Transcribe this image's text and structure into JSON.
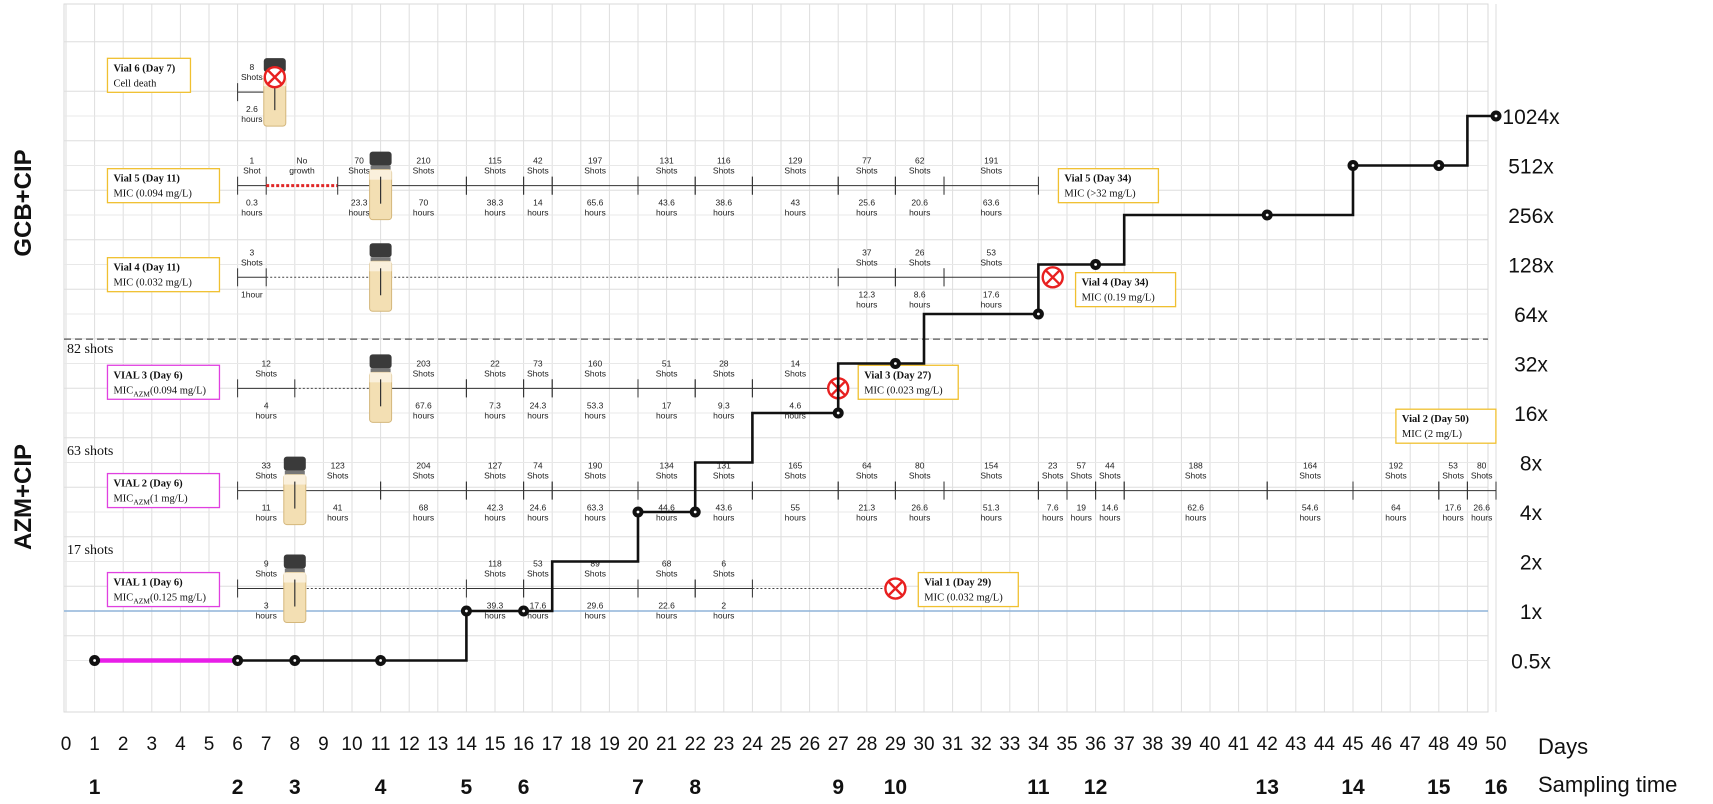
{
  "chart_data": {
    "type": "line",
    "x_axis": {
      "label": "Days",
      "min": 0,
      "max": 50,
      "ticks": [
        0,
        1,
        2,
        3,
        4,
        5,
        6,
        7,
        8,
        9,
        10,
        11,
        12,
        13,
        14,
        15,
        16,
        17,
        18,
        19,
        20,
        21,
        22,
        23,
        24,
        25,
        26,
        27,
        28,
        29,
        30,
        31,
        32,
        33,
        34,
        35,
        36,
        37,
        38,
        39,
        40,
        41,
        42,
        43,
        44,
        45,
        46,
        47,
        48,
        49,
        50
      ]
    },
    "y_axis": {
      "scale": "log2",
      "tick_labels": [
        "0.5x",
        "1x",
        "2x",
        "4x",
        "8x",
        "16x",
        "32x",
        "64x",
        "128x",
        "256x",
        "512x",
        "1024x"
      ],
      "tick_values": [
        0.5,
        1,
        2,
        4,
        8,
        16,
        32,
        64,
        128,
        256,
        512,
        1024
      ]
    },
    "grid": true,
    "group_labels": [
      "GCB+CIP",
      "AZM+CIP"
    ],
    "sampling_time": {
      "label": "Sampling time",
      "points": [
        {
          "day": 1,
          "label": "1"
        },
        {
          "day": 6,
          "label": "2"
        },
        {
          "day": 8,
          "label": "3"
        },
        {
          "day": 11,
          "label": "4"
        },
        {
          "day": 14,
          "label": "5"
        },
        {
          "day": 16,
          "label": "6"
        },
        {
          "day": 20,
          "label": "7"
        },
        {
          "day": 22,
          "label": "8"
        },
        {
          "day": 27,
          "label": "9"
        },
        {
          "day": 29,
          "label": "10"
        },
        {
          "day": 34,
          "label": "11"
        },
        {
          "day": 36,
          "label": "12"
        },
        {
          "day": 42,
          "label": "13"
        },
        {
          "day": 45,
          "label": "14"
        },
        {
          "day": 48,
          "label": "15"
        },
        {
          "day": 50,
          "label": "16"
        }
      ]
    },
    "mic_fold_series": {
      "points": [
        {
          "day": 1,
          "fold": 0.5
        },
        {
          "day": 6,
          "fold": 0.5
        },
        {
          "day": 8,
          "fold": 0.5
        },
        {
          "day": 11,
          "fold": 0.5
        },
        {
          "day": 14,
          "fold": 1
        },
        {
          "day": 16,
          "fold": 1
        },
        {
          "day": 20,
          "fold": 4
        },
        {
          "day": 22,
          "fold": 4
        },
        {
          "day": 27,
          "fold": 16
        },
        {
          "day": 29,
          "fold": 32
        },
        {
          "day": 34,
          "fold": 64
        },
        {
          "day": 36,
          "fold": 128
        },
        {
          "day": 42,
          "fold": 256
        },
        {
          "day": 45,
          "fold": 512
        },
        {
          "day": 48,
          "fold": 512
        },
        {
          "day": 50,
          "fold": 1024
        }
      ],
      "steps": [
        [
          14,
          1
        ],
        [
          17,
          2
        ],
        [
          20,
          4
        ],
        [
          22,
          8
        ],
        [
          24,
          16
        ],
        [
          27,
          32
        ],
        [
          30,
          64
        ],
        [
          34,
          128
        ],
        [
          37,
          256
        ],
        [
          45,
          512
        ],
        [
          49,
          1024
        ]
      ],
      "highlight": {
        "from_day": 1,
        "to_day": 6,
        "color": "#e81ee8"
      }
    },
    "separators": {
      "gcb_azm_divider_fold": 45,
      "one_x_line_fold": 1
    },
    "vials": [
      {
        "id": "vial6",
        "label_title": "Vial 6 (Day 7)",
        "label_sub": "Cell death",
        "label_box_color": "#f0c030",
        "label_box": {
          "day": 1.45,
          "fold": 1810
        },
        "start_day": 6,
        "fold": 1430,
        "timeline_start": 6,
        "bottle_day": 7.3,
        "death_day": 7.3,
        "segments": [
          {
            "x0": 6,
            "x1": 7,
            "shots": "8\nShots",
            "hours": "2.6\nhours",
            "style": "solid"
          }
        ]
      },
      {
        "id": "vial5",
        "label_title": "Vial 5 (Day 11)",
        "label_sub": "MIC (0.094 mg/L)",
        "label_box_color": "#f0c030",
        "label_box": {
          "day": 1.45,
          "fold": 386
        },
        "end_label_title": "Vial 5 (Day 34)",
        "end_label_sub": "MIC (>32 mg/L)",
        "end_label_box": {
          "day": 34.7,
          "fold": 386
        },
        "fold": 386,
        "timeline_start": 6,
        "bottle_day": 11,
        "segments": [
          {
            "x0": 6,
            "x1": 7,
            "shots": "1\nShot",
            "hours": "0.3\nhours",
            "style": "solid"
          },
          {
            "x0": 7,
            "x1": 9.5,
            "shots": "No\ngrowth",
            "hours": "",
            "style": "reddot"
          },
          {
            "x0": 9.5,
            "x1": 11,
            "shots": "70\nShots",
            "hours": "23.3\nhours",
            "style": "solid"
          },
          {
            "x0": 11,
            "x1": 14,
            "shots": "210\nShots",
            "hours": "70\nhours",
            "style": "solid"
          },
          {
            "x0": 14,
            "x1": 16,
            "shots": "115\nShots",
            "hours": "38.3\nhours",
            "style": "solid"
          },
          {
            "x0": 16,
            "x1": 17,
            "shots": "42\nShots",
            "hours": "14\nhours",
            "style": "solid"
          },
          {
            "x0": 17,
            "x1": 20,
            "shots": "197\nShots",
            "hours": "65.6\nhours",
            "style": "solid"
          },
          {
            "x0": 20,
            "x1": 22,
            "shots": "131\nShots",
            "hours": "43.6\nhours",
            "style": "solid"
          },
          {
            "x0": 22,
            "x1": 24,
            "shots": "116\nShots",
            "hours": "38.6\nhours",
            "style": "solid"
          },
          {
            "x0": 24,
            "x1": 27,
            "shots": "129\nShots",
            "hours": "43\nhours",
            "style": "solid"
          },
          {
            "x0": 27,
            "x1": 29,
            "shots": "77\nShots",
            "hours": "25.6\nhours",
            "style": "solid"
          },
          {
            "x0": 29,
            "x1": 30.7,
            "shots": "62\nShots",
            "hours": "20.6\nhours",
            "style": "solid"
          },
          {
            "x0": 30.7,
            "x1": 34,
            "shots": "191\nShots",
            "hours": "63.6\nhours",
            "style": "solid"
          }
        ]
      },
      {
        "id": "vial4",
        "label_title": "Vial 4 (Day 11)",
        "label_sub": "MIC (0.032 mg/L)",
        "label_box_color": "#f0c030",
        "label_box": {
          "day": 1.45,
          "fold": 111
        },
        "end_label_title": "Vial 4 (Day 34)",
        "end_label_sub": "MIC (0.19 mg/L)",
        "end_label_box": {
          "day": 35.3,
          "fold": 90
        },
        "fold": 107,
        "timeline_start": 6,
        "bottle_day": 11,
        "death_day": 34.5,
        "segments": [
          {
            "x0": 6,
            "x1": 7,
            "shots": "3\nShots",
            "hours": "1hour",
            "style": "solid"
          },
          {
            "x0": 7,
            "x1": 27,
            "shots": "",
            "hours": "",
            "style": "dotted"
          },
          {
            "x0": 27,
            "x1": 29,
            "shots": "37\nShots",
            "hours": "12.3\nhours",
            "style": "solid"
          },
          {
            "x0": 29,
            "x1": 30.7,
            "shots": "26\nShots",
            "hours": "8.6\nhours",
            "style": "solid"
          },
          {
            "x0": 30.7,
            "x1": 34,
            "shots": "53\nShots",
            "hours": "17.6\nhours",
            "style": "solid"
          }
        ]
      },
      {
        "id": "vial3",
        "label_title": "VIAL 3 (Day 6)",
        "label_sub_prefix": "MIC",
        "label_sub_subscript": "AZM",
        "label_sub_suffix": "(0.094 mg/L)",
        "label_box_color": "#e040e0",
        "label_box": {
          "day": 1.45,
          "fold": 24.6
        },
        "end_label_title": "Vial 3 (Day 27)",
        "end_label_sub": "MIC (0.023 mg/L)",
        "end_label_box": {
          "day": 27.7,
          "fold": 24.6
        },
        "shots_total": "82 shots",
        "shots_total_fold": 37,
        "fold": 22.6,
        "timeline_start": 6,
        "bottle_day": 11,
        "death_day": 27,
        "segments": [
          {
            "x0": 6,
            "x1": 8,
            "shots": "12\nShots",
            "hours": "4\nhours",
            "style": "solid"
          },
          {
            "x0": 8,
            "x1": 11,
            "shots": "",
            "hours": "",
            "style": "dotted"
          },
          {
            "x0": 11,
            "x1": 14,
            "shots": "203\nShots",
            "hours": "67.6\nhours",
            "style": "solid"
          },
          {
            "x0": 14,
            "x1": 16,
            "shots": "22\nShots",
            "hours": "7.3\nhours",
            "style": "solid"
          },
          {
            "x0": 16,
            "x1": 17,
            "shots": "73\nShots",
            "hours": "24.3\nhours",
            "style": "solid"
          },
          {
            "x0": 17,
            "x1": 20,
            "shots": "160\nShots",
            "hours": "53.3\nhours",
            "style": "solid"
          },
          {
            "x0": 20,
            "x1": 22,
            "shots": "51\nShots",
            "hours": "17\nhours",
            "style": "solid"
          },
          {
            "x0": 22,
            "x1": 24,
            "shots": "28\nShots",
            "hours": "9.3\nhours",
            "style": "solid"
          },
          {
            "x0": 24,
            "x1": 27,
            "shots": "14\nShots",
            "hours": "4.6\nhours",
            "style": "solid"
          }
        ]
      },
      {
        "id": "vial2",
        "label_title": "VIAL 2 (Day 6)",
        "label_sub_prefix": "MIC",
        "label_sub_subscript": "AZM",
        "label_sub_suffix": "(1 mg/L)",
        "label_box_color": "#e040e0",
        "label_box": {
          "day": 1.45,
          "fold": 5.4
        },
        "end_label_title": "Vial 2 (Day 50)",
        "end_label_sub": "MIC (2 mg/L)",
        "end_label_box": {
          "day": 46.5,
          "fold": 13.3
        },
        "shots_total": "63 shots",
        "shots_total_fold": 8.9,
        "fold": 5.4,
        "timeline_start": 6,
        "bottle_day": 8,
        "segments": [
          {
            "x0": 6,
            "x1": 8,
            "shots": "33\nShots",
            "hours": "11\nhours",
            "style": "solid"
          },
          {
            "x0": 8,
            "x1": 11,
            "shots": "123\nShots",
            "hours": "41\nhours",
            "style": "solid"
          },
          {
            "x0": 11,
            "x1": 14,
            "shots": "204\nShots",
            "hours": "68\nhours",
            "style": "solid"
          },
          {
            "x0": 14,
            "x1": 16,
            "shots": "127\nShots",
            "hours": "42.3\nhours",
            "style": "solid"
          },
          {
            "x0": 16,
            "x1": 17,
            "shots": "74\nShots",
            "hours": "24.6\nhours",
            "style": "solid"
          },
          {
            "x0": 17,
            "x1": 20,
            "shots": "190\nShots",
            "hours": "63.3\nhours",
            "style": "solid"
          },
          {
            "x0": 20,
            "x1": 22,
            "shots": "134\nShots",
            "hours": "44.6\nhours",
            "style": "solid"
          },
          {
            "x0": 22,
            "x1": 24,
            "shots": "131\nShots",
            "hours": "43.6\nhours",
            "style": "solid"
          },
          {
            "x0": 24,
            "x1": 27,
            "shots": "165\nShots",
            "hours": "55\nhours",
            "style": "solid"
          },
          {
            "x0": 27,
            "x1": 29,
            "shots": "64\nShots",
            "hours": "21.3\nhours",
            "style": "solid"
          },
          {
            "x0": 29,
            "x1": 30.7,
            "shots": "80\nShots",
            "hours": "26.6\nhours",
            "style": "solid"
          },
          {
            "x0": 30.7,
            "x1": 34,
            "shots": "154\nShots",
            "hours": "51.3\nhours",
            "style": "solid"
          },
          {
            "x0": 34,
            "x1": 35,
            "shots": "23\nShots",
            "hours": "7.6\nhours",
            "style": "solid"
          },
          {
            "x0": 35,
            "x1": 36,
            "shots": "57\nShots",
            "hours": "19\nhours",
            "style": "solid"
          },
          {
            "x0": 36,
            "x1": 37,
            "shots": "44\nShots",
            "hours": "14.6\nhours",
            "style": "solid"
          },
          {
            "x0": 37,
            "x1": 42,
            "shots": "188\nShots",
            "hours": "62.6\nhours",
            "style": "solid"
          },
          {
            "x0": 42,
            "x1": 45,
            "shots": "164\nShots",
            "hours": "54.6\nhours",
            "style": "solid"
          },
          {
            "x0": 45,
            "x1": 48,
            "shots": "192\nShots",
            "hours": "64\nhours",
            "style": "solid"
          },
          {
            "x0": 48,
            "x1": 49,
            "shots": "53\nShots",
            "hours": "17.6\nhours",
            "style": "solid"
          },
          {
            "x0": 49,
            "x1": 50,
            "shots": "80\nShots",
            "hours": "26.6\nhours",
            "style": "solid"
          }
        ]
      },
      {
        "id": "vial1",
        "label_title": "VIAL 1 (Day 6)",
        "label_sub_prefix": "MIC",
        "label_sub_subscript": "AZM",
        "label_sub_suffix": "(0.125 mg/L)",
        "label_box_color": "#e040e0",
        "label_box": {
          "day": 1.45,
          "fold": 1.35
        },
        "end_label_title": "Vial 1 (Day 29)",
        "end_label_sub": "MIC (0.032 mg/L)",
        "end_label_box": {
          "day": 29.8,
          "fold": 1.35
        },
        "shots_total": "17 shots",
        "shots_total_fold": 2.22,
        "fold": 1.37,
        "timeline_start": 6,
        "bottle_day": 8,
        "death_day": 29,
        "segments": [
          {
            "x0": 6,
            "x1": 8,
            "shots": "9\nShots",
            "hours": "3\nhours",
            "style": "solid"
          },
          {
            "x0": 8,
            "x1": 14,
            "shots": "",
            "hours": "",
            "style": "dotted"
          },
          {
            "x0": 14,
            "x1": 16,
            "shots": "118\nShots",
            "hours": "39.3\nhours",
            "style": "solid"
          },
          {
            "x0": 16,
            "x1": 17,
            "shots": "53\nShots",
            "hours": "17.6\nhours",
            "style": "solid"
          },
          {
            "x0": 17,
            "x1": 20,
            "shots": "89\nShots",
            "hours": "29.6\nhours",
            "style": "solid"
          },
          {
            "x0": 20,
            "x1": 22,
            "shots": "68\nShots",
            "hours": "22.6\nhours",
            "style": "solid"
          },
          {
            "x0": 22,
            "x1": 24,
            "shots": "6\nShots",
            "hours": "2\nhours",
            "style": "solid"
          },
          {
            "x0": 24,
            "x1": 29,
            "shots": "",
            "hours": "",
            "style": "dotted"
          }
        ]
      }
    ]
  }
}
